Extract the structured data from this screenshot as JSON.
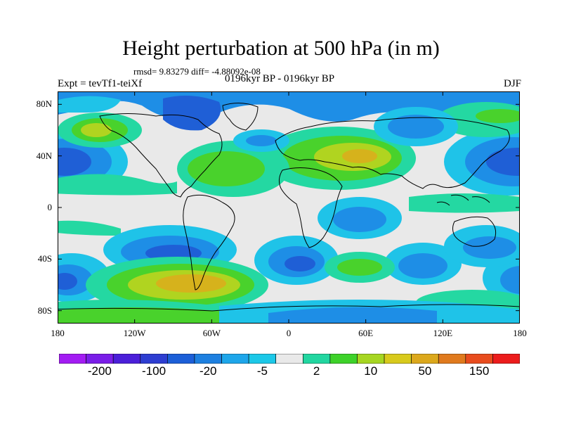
{
  "title": "Height perturbation at 500 hPa (in m)",
  "stats": "rmsd= 9.83279 diff= -4.88092e-08",
  "left_label": "Expt = tevTf1-teiXf",
  "center_label": "0196kyr BP - 0196kyr BP",
  "right_label": "DJF",
  "y_ticks": [
    {
      "label": "80N",
      "lat": 80
    },
    {
      "label": "40N",
      "lat": 40
    },
    {
      "label": "0",
      "lat": 0
    },
    {
      "label": "40S",
      "lat": -40
    },
    {
      "label": "80S",
      "lat": -80
    }
  ],
  "x_ticks": [
    {
      "label": "180",
      "lon": -180
    },
    {
      "label": "120W",
      "lon": -120
    },
    {
      "label": "60W",
      "lon": -60
    },
    {
      "label": "0",
      "lon": 0
    },
    {
      "label": "60E",
      "lon": 60
    },
    {
      "label": "120E",
      "lon": 120
    },
    {
      "label": "180",
      "lon": 180
    }
  ],
  "colorbar": {
    "colors": [
      "#a31cf3",
      "#7a1ee8",
      "#4b1fd9",
      "#2e3ed1",
      "#1c5fd8",
      "#1e80e0",
      "#1ea6ea",
      "#1cc8e8",
      "#e9e9e9",
      "#22d6a0",
      "#3ed22a",
      "#a6d622",
      "#d8ca1c",
      "#dca81c",
      "#e07a1e",
      "#e84c1e",
      "#ec1c1c"
    ],
    "labels": [
      "-200",
      "-100",
      "-20",
      "-5",
      "2",
      "10",
      "50",
      "150"
    ]
  },
  "field_colors": {
    "deep_negative": "#1f5fd6",
    "mid_negative": "#1e8ee6",
    "weak_negative": "#1fc3e8",
    "neutral": "#e9e9e9",
    "weak_positive": "#24d8a2",
    "mid_positive": "#49d22c",
    "strong_positive": "#b0d420",
    "peak_positive": "#d6b21c"
  }
}
